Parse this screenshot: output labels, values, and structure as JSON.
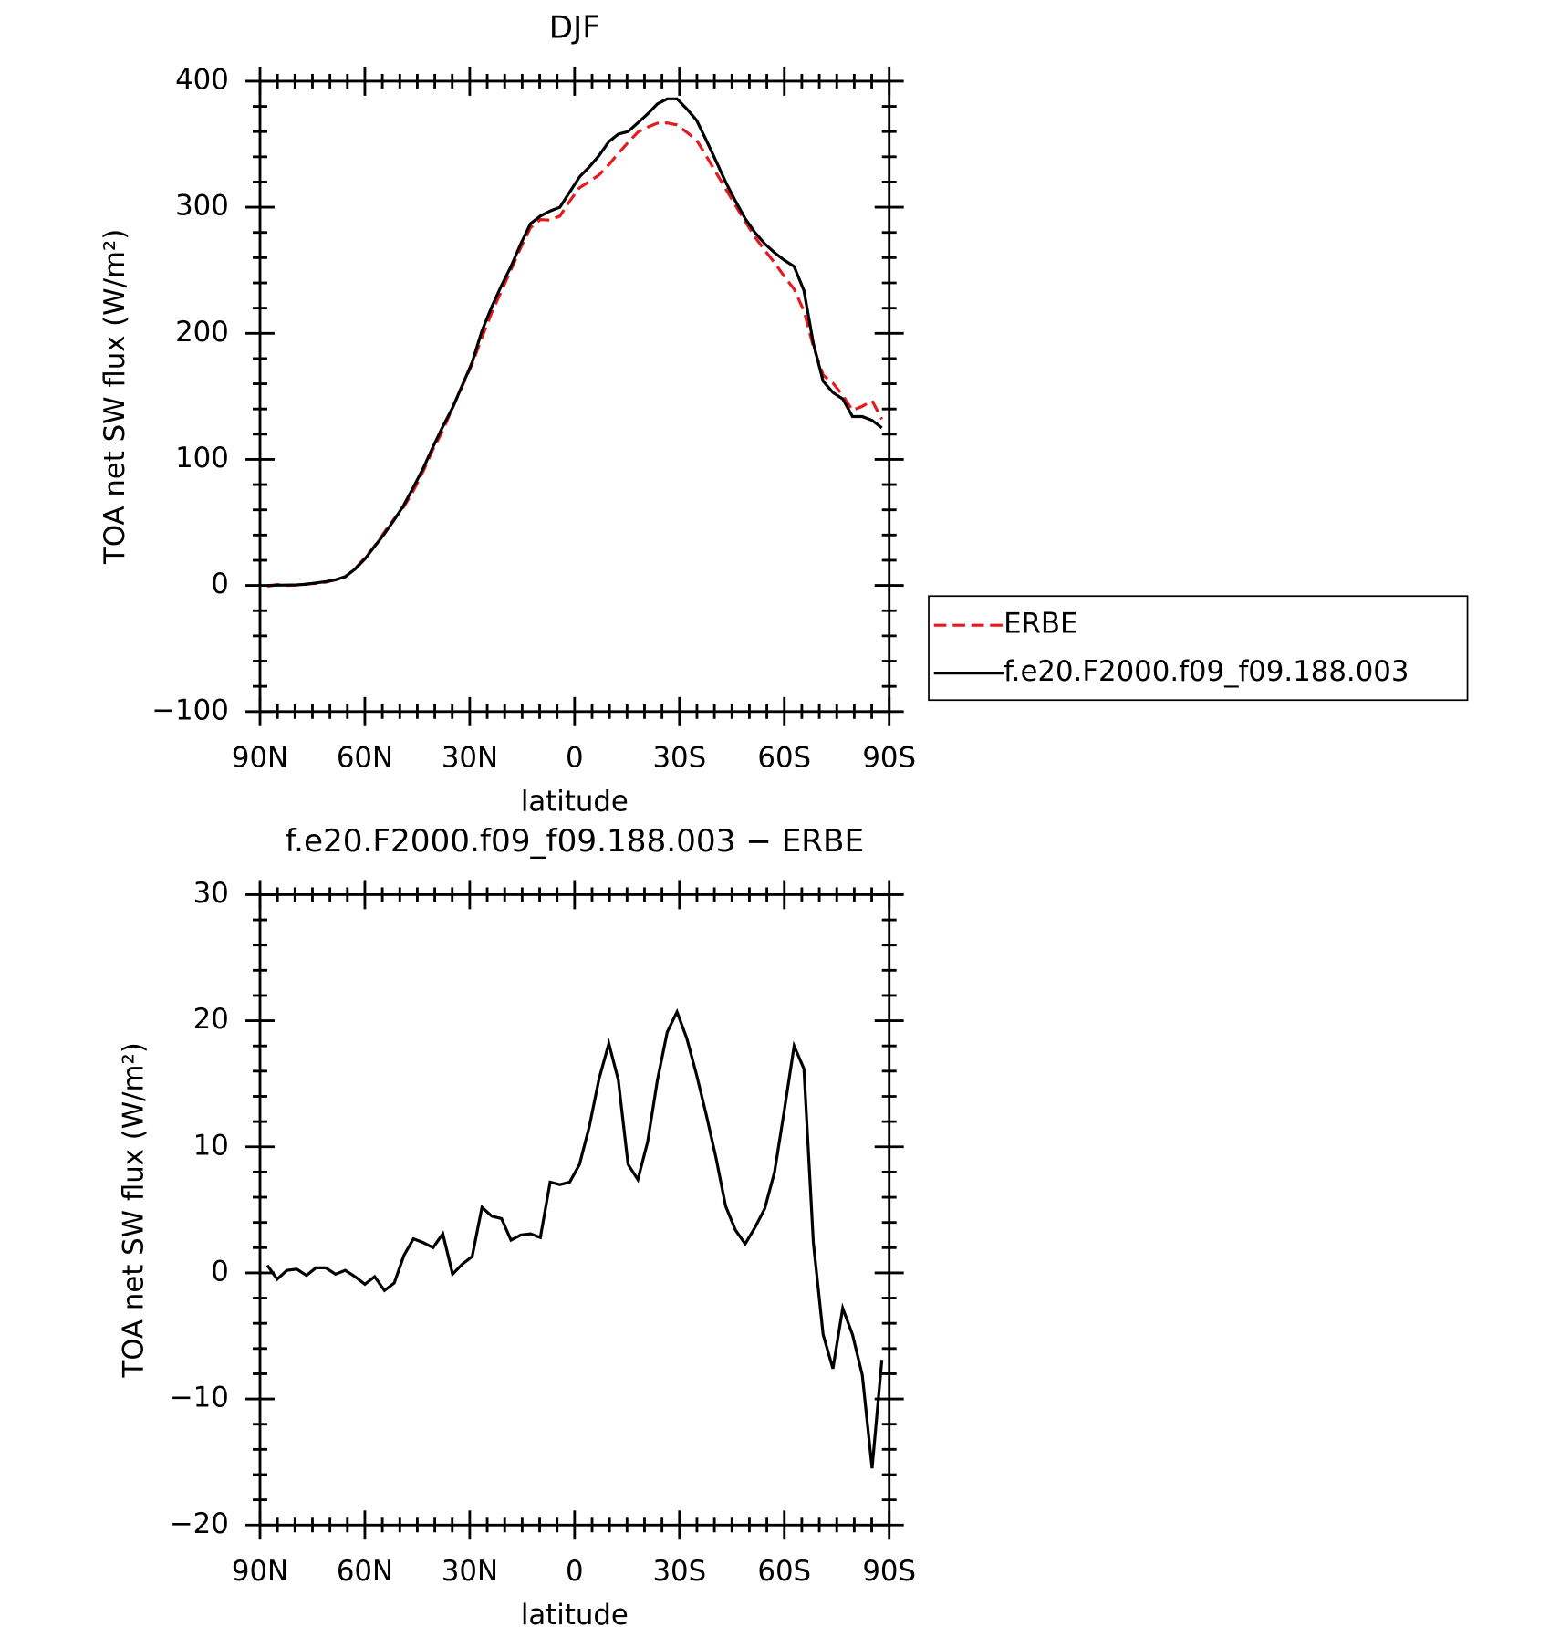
{
  "chart_data": [
    {
      "type": "line",
      "title": "DJF",
      "xlabel": "latitude",
      "ylabel": "TOA net SW flux (W/m²)",
      "x": [
        87.9,
        85.1,
        82.3,
        79.5,
        76.7,
        74.0,
        71.2,
        68.4,
        65.6,
        62.8,
        60.0,
        57.2,
        54.4,
        51.6,
        48.8,
        46.1,
        43.3,
        40.5,
        37.7,
        34.9,
        32.1,
        29.3,
        26.5,
        23.7,
        20.9,
        18.2,
        15.4,
        12.6,
        9.8,
        7.0,
        4.2,
        1.4,
        -1.4,
        -4.2,
        -7.0,
        -9.8,
        -12.5,
        -15.3,
        -18.1,
        -20.9,
        -23.7,
        -26.5,
        -29.3,
        -32.1,
        -34.9,
        -37.7,
        -40.4,
        -43.2,
        -46.0,
        -48.8,
        -51.6,
        -54.4,
        -57.2,
        -60.0,
        -62.8,
        -65.6,
        -68.3,
        -71.1,
        -73.9,
        -76.7,
        -79.5,
        -82.3,
        -85.1,
        -87.9
      ],
      "series": [
        {
          "name": "ERBE",
          "color": "#e41a1c",
          "linestyle": "dashed",
          "values": [
            -0.6,
            0.7,
            0.1,
            0.2,
            1.2,
            1.6,
            2.6,
            4.6,
            6.8,
            13.3,
            21.9,
            31.3,
            42.4,
            52.8,
            62.6,
            75.3,
            90.6,
            108,
            122.9,
            141.1,
            158.3,
            175.7,
            196.8,
            216.5,
            233.7,
            250.4,
            268,
            283.9,
            290.2,
            289.8,
            293,
            304.8,
            315.4,
            320.4,
            325.6,
            333.8,
            342.7,
            351.4,
            359.6,
            363.6,
            366.7,
            366.9,
            365.3,
            359.4,
            353.3,
            340.5,
            327.8,
            314.7,
            301.6,
            288.7,
            276.4,
            265.9,
            256,
            245.1,
            235,
            217.8,
            189.6,
            166.9,
            160.6,
            150.8,
            138.9,
            142.1,
            146.5,
            131.9
          ]
        },
        {
          "name": "f.e20.F2000.f09_f09.188.003",
          "color": "#000000",
          "linestyle": "solid",
          "values": [
            0,
            0.2,
            0.3,
            0.5,
            1,
            2,
            3,
            4.5,
            7,
            13,
            21,
            31,
            41,
            52,
            64,
            78,
            93,
            110,
            126,
            141,
            159,
            177,
            202,
            221,
            238,
            253,
            271,
            287,
            293,
            297,
            300,
            312,
            324,
            332,
            341,
            352,
            358,
            360,
            367,
            374,
            382,
            386,
            386,
            378,
            369,
            353,
            337,
            320,
            305,
            291,
            280,
            271,
            264,
            258,
            253,
            234,
            192,
            162,
            153,
            148,
            134,
            134,
            131,
            125
          ]
        }
      ],
      "xlim": [
        90,
        -90
      ],
      "xticks": [
        {
          "value": 90,
          "label": "90N"
        },
        {
          "value": 60,
          "label": "60N"
        },
        {
          "value": 30,
          "label": "30N"
        },
        0,
        {
          "value": -30,
          "label": "30S"
        },
        {
          "value": -60,
          "label": "60S"
        },
        {
          "value": -90,
          "label": "90S"
        }
      ],
      "ylim": [
        -100,
        400
      ],
      "yticks": [
        {
          "value": -100,
          "label": "−100"
        },
        0,
        100,
        200,
        300,
        400
      ],
      "legend": "right"
    },
    {
      "type": "line",
      "title": "f.e20.F2000.f09_f09.188.003 − ERBE",
      "xlabel": "latitude",
      "ylabel": "TOA net SW flux (W/m²)",
      "x": [
        87.9,
        85.1,
        82.3,
        79.5,
        76.7,
        74.0,
        71.2,
        68.4,
        65.6,
        62.8,
        60.0,
        57.2,
        54.4,
        51.6,
        48.8,
        46.1,
        43.3,
        40.5,
        37.7,
        34.9,
        32.1,
        29.3,
        26.5,
        23.7,
        20.9,
        18.2,
        15.4,
        12.6,
        9.8,
        7.0,
        4.2,
        1.4,
        -1.4,
        -4.2,
        -7.0,
        -9.8,
        -12.5,
        -15.3,
        -18.1,
        -20.9,
        -23.7,
        -26.5,
        -29.3,
        -32.1,
        -34.9,
        -37.7,
        -40.4,
        -43.2,
        -46.0,
        -48.8,
        -51.6,
        -54.4,
        -57.2,
        -60.0,
        -62.8,
        -65.6,
        -68.3,
        -71.1,
        -73.9,
        -76.7,
        -79.5,
        -82.3,
        -85.1,
        -87.9
      ],
      "series": [
        {
          "color": "#000000",
          "linestyle": "solid",
          "values": [
            0.6,
            -0.5,
            0.2,
            0.3,
            -0.2,
            0.4,
            0.4,
            -0.1,
            0.2,
            -0.3,
            -0.9,
            -0.3,
            -1.4,
            -0.8,
            1.4,
            2.7,
            2.4,
            2.0,
            3.1,
            -0.1,
            0.7,
            1.3,
            5.2,
            4.5,
            4.3,
            2.6,
            3.0,
            3.1,
            2.8,
            7.2,
            7.0,
            7.2,
            8.6,
            11.6,
            15.4,
            18.2,
            15.3,
            8.6,
            7.4,
            10.4,
            15.3,
            19.1,
            20.7,
            18.6,
            15.7,
            12.5,
            9.2,
            5.3,
            3.4,
            2.3,
            3.6,
            5.1,
            8.0,
            12.9,
            18.0,
            16.2,
            2.4,
            -4.9,
            -7.6,
            -2.8,
            -4.9,
            -8.1,
            -15.5,
            -6.9
          ]
        }
      ],
      "xlim": [
        90,
        -90
      ],
      "xticks": [
        {
          "value": 90,
          "label": "90N"
        },
        {
          "value": 60,
          "label": "60N"
        },
        {
          "value": 30,
          "label": "30N"
        },
        0,
        {
          "value": -30,
          "label": "30S"
        },
        {
          "value": -60,
          "label": "60S"
        },
        {
          "value": -90,
          "label": "90S"
        }
      ],
      "ylim": [
        -20,
        30
      ],
      "yticks": [
        {
          "value": -20,
          "label": "−20"
        },
        {
          "value": -10,
          "label": "−10"
        },
        0,
        10,
        20,
        30
      ]
    }
  ]
}
